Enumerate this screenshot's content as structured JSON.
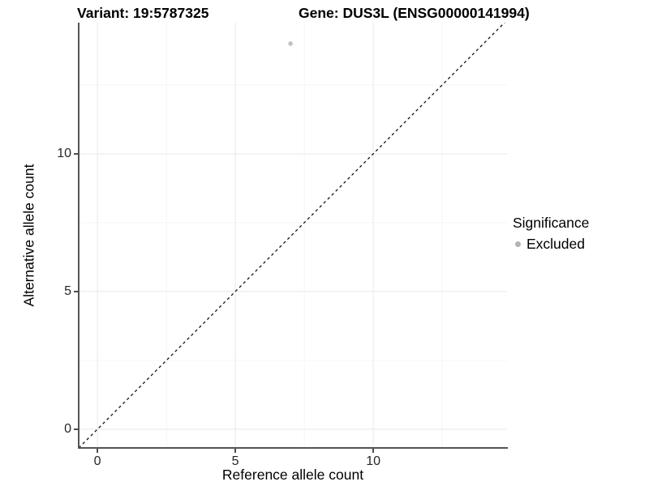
{
  "chart_data": {
    "type": "scatter",
    "title_variant": "Variant: 19:5787325",
    "title_gene": "Gene: DUS3L (ENSG00000141994)",
    "xlabel": "Reference allele count",
    "ylabel": "Alternative allele count",
    "xlim": [
      -0.68,
      14.85
    ],
    "ylim": [
      -0.68,
      14.76
    ],
    "x_ticks": [
      0,
      5,
      10
    ],
    "y_ticks": [
      0,
      5,
      10
    ],
    "x_minor_ticks": [
      2.5,
      7.5,
      12.5
    ],
    "y_minor_ticks": [
      2.5,
      7.5,
      12.5
    ],
    "grid": "major-and-minor",
    "series": [
      {
        "name": "Excluded",
        "color": "#c2c2c2",
        "marker": "circle",
        "points": [
          {
            "x": 7,
            "y": 14
          }
        ]
      }
    ],
    "reference_line": {
      "kind": "identity",
      "slope": 1,
      "intercept": 0,
      "style": "dashed",
      "color": "#111111"
    },
    "legend": {
      "title": "Significance",
      "position": "right",
      "items": [
        {
          "label": "Excluded",
          "color": "#b3b3b3"
        }
      ]
    },
    "style": {
      "background": "#ffffff",
      "axis_line_color": "#545454",
      "tick_color": "#4d4d4d",
      "tick_text_color": "#262626",
      "grid_major_color": "#ececec",
      "grid_minor_color": "#f5f5f5"
    }
  }
}
